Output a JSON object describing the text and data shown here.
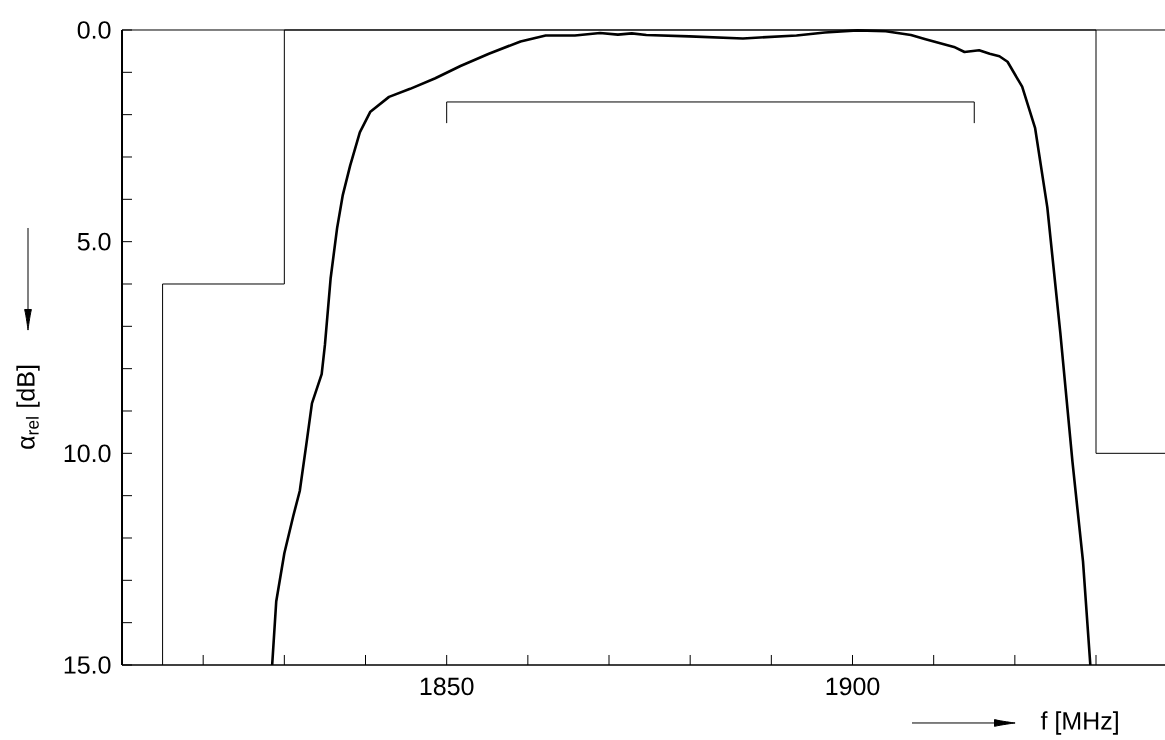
{
  "chart_data": {
    "type": "line",
    "xlabel": "f [MHz]",
    "ylabel": "α$_{rel}$ [dB]",
    "xlim": [
      1810,
      1938.5
    ],
    "ylim": [
      15,
      0
    ],
    "xticks": [
      {
        "value": 1820,
        "label": null
      },
      {
        "value": 1830,
        "label": null
      },
      {
        "value": 1840,
        "label": null
      },
      1850,
      {
        "value": 1860,
        "label": null
      },
      {
        "value": 1870,
        "label": null
      },
      {
        "value": 1880,
        "label": null
      },
      {
        "value": 1890,
        "label": null
      },
      1900,
      {
        "value": 1910,
        "label": null
      },
      {
        "value": 1920,
        "label": null
      },
      {
        "value": 1930,
        "label": null
      }
    ],
    "yticks": [
      {
        "value": 0,
        "label": "0.0"
      },
      {
        "value": 1,
        "label": null
      },
      {
        "value": 2,
        "label": null
      },
      {
        "value": 3,
        "label": null
      },
      {
        "value": 4,
        "label": null
      },
      {
        "value": 5,
        "label": "5.0"
      },
      {
        "value": 6,
        "label": null
      },
      {
        "value": 7,
        "label": null
      },
      {
        "value": 8,
        "label": null
      },
      {
        "value": 9,
        "label": null
      },
      {
        "value": 10,
        "label": "10.0"
      },
      {
        "value": 11,
        "label": null
      },
      {
        "value": 12,
        "label": null
      },
      {
        "value": 13,
        "label": null
      },
      {
        "value": 14,
        "label": null
      },
      {
        "value": 15,
        "label": "15.0"
      }
    ],
    "series": [
      {
        "color": "#000000",
        "x": [
          1828.5,
          1829.0,
          1830.0,
          1831.1,
          1831.9,
          1832.7,
          1833.4,
          1834.6,
          1835.0,
          1835.7,
          1836.5,
          1837.2,
          1838.1,
          1839.3,
          1840.6,
          1842.9,
          1845.5,
          1848.6,
          1851.7,
          1855.2,
          1859.1,
          1862.2,
          1865.8,
          1868.9,
          1871.1,
          1872.8,
          1874.6,
          1879.9,
          1886.5,
          1893.1,
          1896.6,
          1900.6,
          1904.1,
          1907.2,
          1909.0,
          1912.5,
          1913.8,
          1915.6,
          1916.9,
          1918.1,
          1919.1,
          1920.9,
          1922.5,
          1924.0,
          1925.6,
          1927.1,
          1928.4,
          1929.3
        ],
        "values": [
          15,
          13.5,
          12.36,
          11.48,
          10.89,
          9.8,
          8.82,
          8.13,
          7.44,
          5.87,
          4.68,
          3.9,
          3.21,
          2.42,
          1.93,
          1.58,
          1.39,
          1.14,
          0.85,
          0.56,
          0.27,
          0.13,
          0.13,
          0.07,
          0.11,
          0.08,
          0.12,
          0.15,
          0.2,
          0.13,
          0.06,
          0.01,
          0.03,
          0.12,
          0.22,
          0.4,
          0.52,
          0.48,
          0.56,
          0.62,
          0.75,
          1.34,
          2.32,
          4.19,
          7.15,
          10.2,
          12.56,
          15
        ]
      },
      {
        "color": "#000000",
        "x": [
          1815,
          1815,
          1830,
          1830,
          1930,
          1930,
          1938.5
        ],
        "values": [
          15,
          6,
          6,
          0,
          0,
          10,
          10
        ]
      },
      {
        "color": "#000000",
        "x": [
          1850,
          1850,
          1915,
          1915
        ],
        "values": [
          2.2,
          1.7,
          1.7,
          2.2
        ]
      }
    ]
  }
}
